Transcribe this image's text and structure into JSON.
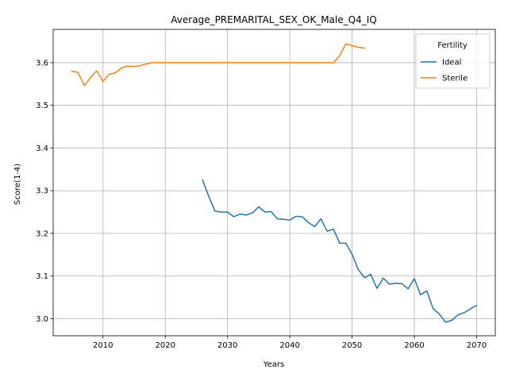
{
  "chart_data": {
    "type": "line",
    "title": "Average_PREMARITAL_SEX_OK_Male_Q4_IQ",
    "xlabel": "Years",
    "ylabel": "Score(1-4)",
    "xlim": [
      2002,
      2073
    ],
    "ylim": [
      2.96,
      3.678
    ],
    "xticks": [
      2010,
      2020,
      2030,
      2040,
      2050,
      2060,
      2070
    ],
    "yticks": [
      3.0,
      3.1,
      3.2,
      3.3,
      3.4,
      3.5,
      3.6
    ],
    "ytick_labels": [
      "3.0",
      "3.1",
      "3.2",
      "3.3",
      "3.4",
      "3.5",
      "3.6"
    ],
    "grid": true,
    "legend": {
      "title": "Fertility",
      "placement": "top-right"
    },
    "series": [
      {
        "name": "Ideal",
        "color": "#1f77b4",
        "x": [
          2026,
          2027,
          2028,
          2029,
          2030,
          2031,
          2032,
          2033,
          2034,
          2035,
          2036,
          2037,
          2038,
          2039,
          2040,
          2041,
          2042,
          2043,
          2044,
          2045,
          2046,
          2047,
          2048,
          2049,
          2050,
          2051,
          2052,
          2053,
          2054,
          2055,
          2056,
          2057,
          2058,
          2059,
          2060,
          2061,
          2062,
          2063,
          2064,
          2065,
          2066,
          2067,
          2068,
          2069,
          2070
        ],
        "values": [
          3.325,
          3.286,
          3.252,
          3.25,
          3.25,
          3.239,
          3.245,
          3.243,
          3.248,
          3.262,
          3.25,
          3.251,
          3.234,
          3.233,
          3.231,
          3.24,
          3.239,
          3.225,
          3.216,
          3.234,
          3.205,
          3.21,
          3.177,
          3.177,
          3.151,
          3.115,
          3.096,
          3.104,
          3.071,
          3.095,
          3.081,
          3.083,
          3.082,
          3.07,
          3.094,
          3.056,
          3.065,
          3.024,
          3.011,
          2.992,
          2.996,
          3.009,
          3.014,
          3.023,
          3.031
        ]
      },
      {
        "name": "Sterile",
        "color": "#ff7f0e",
        "x": [
          2005,
          2006,
          2007,
          2008,
          2009,
          2010,
          2011,
          2012,
          2013,
          2014,
          2015,
          2016,
          2017,
          2018,
          2019,
          2020,
          2021,
          2022,
          2023,
          2024,
          2025,
          2026,
          2027,
          2028,
          2029,
          2030,
          2031,
          2032,
          2033,
          2034,
          2035,
          2036,
          2037,
          2038,
          2039,
          2040,
          2041,
          2042,
          2043,
          2044,
          2045,
          2046,
          2047,
          2048,
          2049,
          2050,
          2051,
          2052
        ],
        "values": [
          3.58,
          3.577,
          3.546,
          3.565,
          3.581,
          3.556,
          3.573,
          3.576,
          3.588,
          3.592,
          3.591,
          3.593,
          3.597,
          3.6,
          3.6,
          3.6,
          3.6,
          3.6,
          3.6,
          3.6,
          3.6,
          3.6,
          3.6,
          3.6,
          3.6,
          3.6,
          3.6,
          3.6,
          3.6,
          3.6,
          3.6,
          3.6,
          3.6,
          3.6,
          3.6,
          3.6,
          3.6,
          3.6,
          3.6,
          3.6,
          3.6,
          3.6,
          3.6,
          3.616,
          3.644,
          3.64,
          3.636,
          3.634
        ]
      }
    ]
  }
}
